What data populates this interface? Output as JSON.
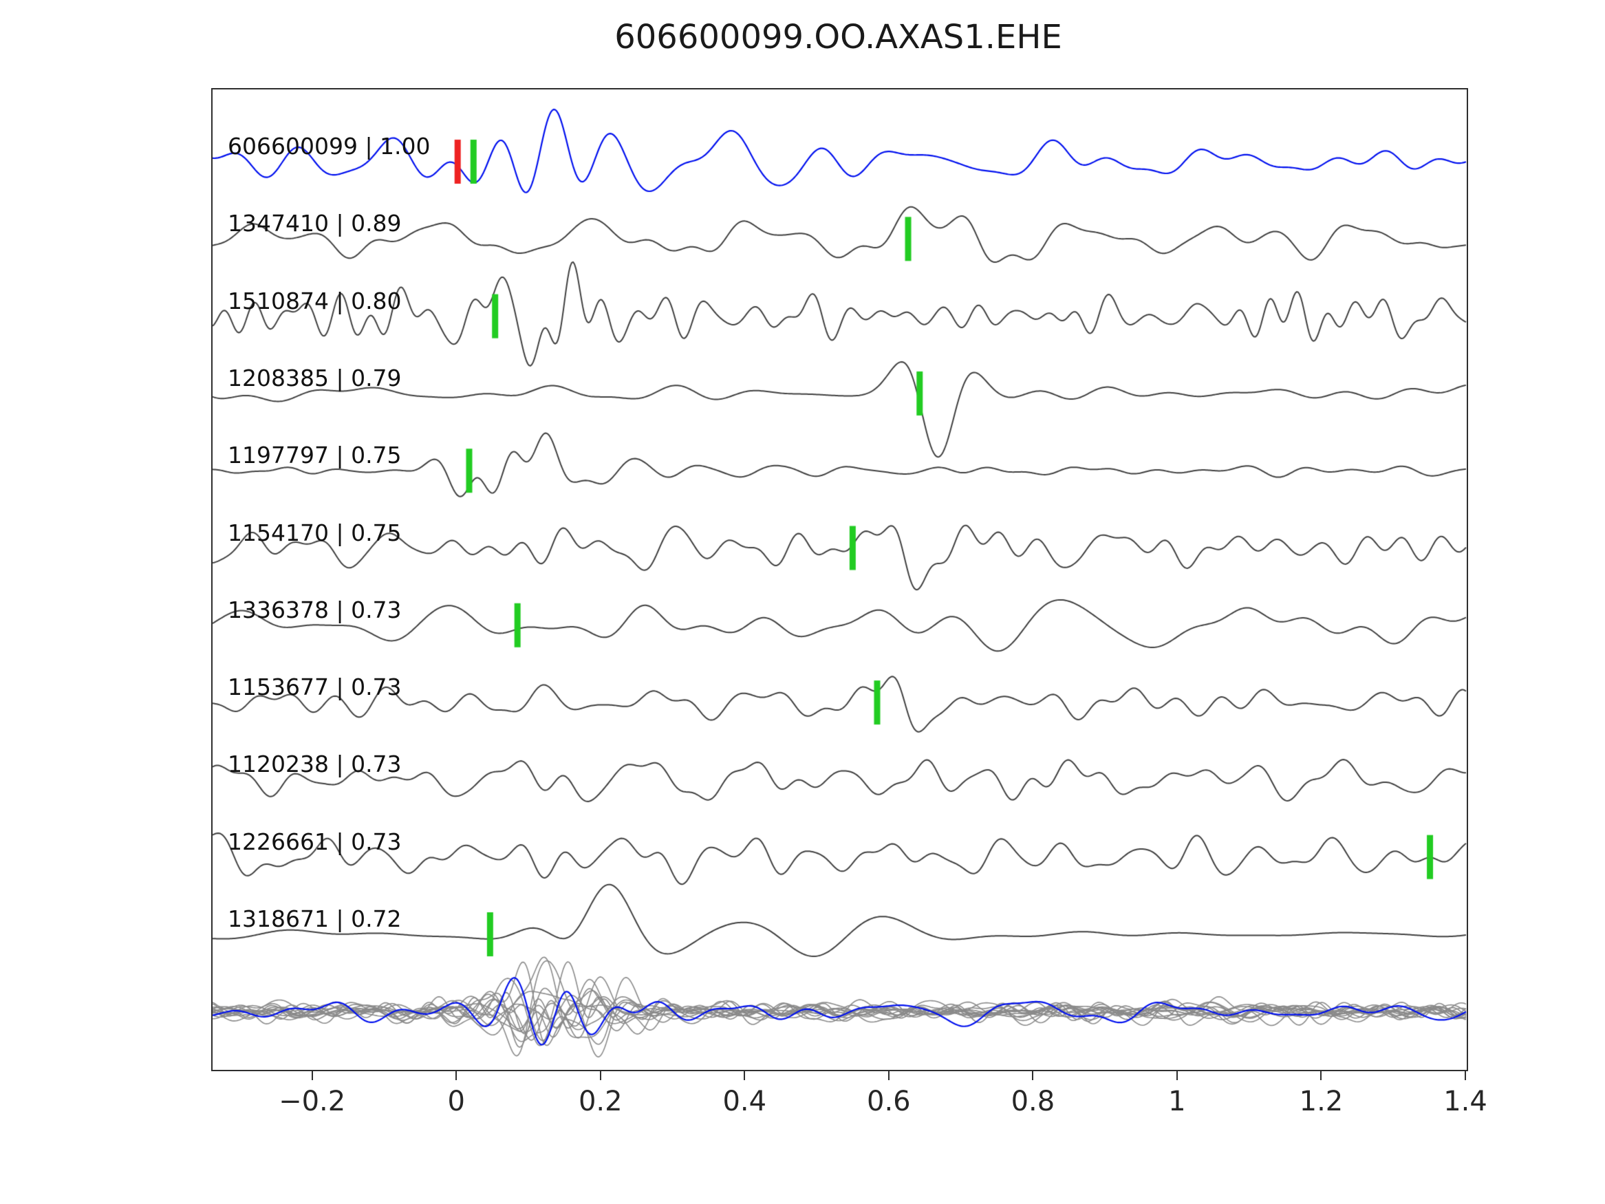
{
  "title": "606600099.OO.AXAS1.EHE",
  "chart_data": {
    "type": "line",
    "title": "606600099.OO.AXAS1.EHE",
    "xlabel": "",
    "ylabel": "",
    "xlim": [
      -0.34,
      1.4
    ],
    "grid": false,
    "legend": null,
    "x_ticks": [
      {
        "value": -0.2,
        "label": "−0.2"
      },
      {
        "value": 0,
        "label": "0"
      },
      {
        "value": 0.2,
        "label": "0.2"
      },
      {
        "value": 0.4,
        "label": "0.4"
      },
      {
        "value": 0.6,
        "label": "0.6"
      },
      {
        "value": 0.8,
        "label": "0.8"
      },
      {
        "value": 1,
        "label": "1"
      },
      {
        "value": 1.2,
        "label": "1.2"
      },
      {
        "value": 1.4,
        "label": "1.4"
      }
    ],
    "colors": {
      "template": "#0010ee",
      "detection": "#3f3f3f",
      "stack": "#8a8a8a",
      "pick": "#22cc22",
      "template_pick": "#ee2222",
      "axis": "#2e2e2e"
    },
    "traces": [
      {
        "id": "606600099",
        "cc": "1.00",
        "label": "606600099 | 1.00",
        "is_template": true,
        "picks": [
          {
            "t": 0.0,
            "kind": "template_pick"
          },
          {
            "t": 0.022,
            "kind": "pick"
          }
        ],
        "synth": {
          "seed": 11,
          "f_lo": 4,
          "f_hi": 16,
          "base": 0.5,
          "amp": 40,
          "bumps": [
            {
              "t": 0.12,
              "w": 0.1,
              "g": 1.6
            },
            {
              "t": 0.35,
              "w": 0.35,
              "g": 0.5
            }
          ]
        }
      },
      {
        "id": "1347410",
        "cc": "0.89",
        "label": "1347410 | 0.89",
        "is_template": false,
        "picks": [
          {
            "t": 0.625,
            "kind": "pick"
          }
        ],
        "synth": {
          "seed": 22,
          "f_lo": 4,
          "f_hi": 18,
          "base": 0.55,
          "amp": 38,
          "bumps": [
            {
              "t": 0.68,
              "w": 0.09,
              "g": 1.4
            }
          ]
        }
      },
      {
        "id": "1510874",
        "cc": "0.80",
        "label": "1510874 | 0.80",
        "is_template": false,
        "picks": [
          {
            "t": 0.052,
            "kind": "pick"
          }
        ],
        "synth": {
          "seed": 33,
          "f_lo": 7,
          "f_hi": 30,
          "base": 0.75,
          "amp": 36,
          "bumps": [
            {
              "t": 0.12,
              "w": 0.09,
              "g": 1.1
            }
          ]
        }
      },
      {
        "id": "1208385",
        "cc": "0.79",
        "label": "1208385 | 0.79",
        "is_template": false,
        "picks": [
          {
            "t": 0.641,
            "kind": "pick"
          }
        ],
        "synth": {
          "seed": 44,
          "f_lo": 3,
          "f_hi": 12,
          "base": 0.45,
          "amp": 36,
          "bumps": [
            {
              "t": 0.655,
              "w": 0.06,
              "g": 2.4
            }
          ]
        }
      },
      {
        "id": "1197797",
        "cc": "0.75",
        "label": "1197797 | 0.75",
        "is_template": false,
        "picks": [
          {
            "t": 0.016,
            "kind": "pick"
          }
        ],
        "synth": {
          "seed": 55,
          "f_lo": 5,
          "f_hi": 22,
          "base": 0.18,
          "amp": 40,
          "bumps": [
            {
              "t": 0.07,
              "w": 0.07,
              "g": 2.6
            },
            {
              "t": 0.2,
              "w": 0.15,
              "g": 0.5
            }
          ]
        }
      },
      {
        "id": "1154170",
        "cc": "0.75",
        "label": "1154170 | 0.75",
        "is_template": false,
        "picks": [
          {
            "t": 0.548,
            "kind": "pick"
          }
        ],
        "synth": {
          "seed": 66,
          "f_lo": 5,
          "f_hi": 22,
          "base": 0.65,
          "amp": 36,
          "bumps": [
            {
              "t": 0.62,
              "w": 0.12,
              "g": 0.8
            }
          ]
        }
      },
      {
        "id": "1336378",
        "cc": "0.73",
        "label": "1336378 | 0.73",
        "is_template": false,
        "picks": [
          {
            "t": 0.083,
            "kind": "pick"
          }
        ],
        "synth": {
          "seed": 77,
          "f_lo": 3.5,
          "f_hi": 14,
          "base": 0.6,
          "amp": 38,
          "bumps": [
            {
              "t": 1.1,
              "w": 0.25,
              "g": 0.7
            }
          ]
        }
      },
      {
        "id": "1153677",
        "cc": "0.73",
        "label": "1153677 | 0.73",
        "is_template": false,
        "picks": [
          {
            "t": 0.582,
            "kind": "pick"
          }
        ],
        "synth": {
          "seed": 88,
          "f_lo": 5,
          "f_hi": 22,
          "base": 0.6,
          "amp": 36,
          "bumps": [
            {
              "t": 0.07,
              "w": 0.05,
              "g": 1.3
            },
            {
              "t": 0.63,
              "w": 0.07,
              "g": 1.2
            }
          ]
        }
      },
      {
        "id": "1120238",
        "cc": "0.73",
        "label": "1120238 | 0.73",
        "is_template": false,
        "picks": [],
        "synth": {
          "seed": 99,
          "f_lo": 5,
          "f_hi": 22,
          "base": 0.65,
          "amp": 36,
          "bumps": [
            {
              "t": 1.08,
              "w": 0.04,
              "g": 1.2
            }
          ]
        }
      },
      {
        "id": "1226661",
        "cc": "0.73",
        "label": "1226661 | 0.73",
        "is_template": false,
        "picks": [
          {
            "t": 1.349,
            "kind": "pick"
          }
        ],
        "synth": {
          "seed": 111,
          "f_lo": 5,
          "f_hi": 22,
          "base": 0.65,
          "amp": 36,
          "bumps": [
            {
              "t": 1.37,
              "w": 0.05,
              "g": 1.3
            }
          ]
        }
      },
      {
        "id": "1318671",
        "cc": "0.72",
        "label": "1318671 | 0.72",
        "is_template": false,
        "picks": [
          {
            "t": 0.045,
            "kind": "pick"
          }
        ],
        "synth": {
          "seed": 122,
          "f_lo": 2.5,
          "f_hi": 9,
          "base": 0.15,
          "amp": 36,
          "bumps": [
            {
              "t": 0.17,
              "w": 0.09,
              "g": 3.0
            },
            {
              "t": 0.4,
              "w": 0.25,
              "g": 0.9
            }
          ]
        }
      }
    ],
    "stack": {
      "count": 14,
      "synth": {
        "seed": 500,
        "f_lo": 5,
        "f_hi": 24,
        "base": 0.45,
        "amp": 24,
        "bumps": [
          {
            "t": 0.13,
            "w": 0.09,
            "g": 2.2
          }
        ]
      },
      "template_synth": {
        "seed": 61,
        "f_lo": 4,
        "f_hi": 18,
        "base": 0.5,
        "amp": 26,
        "bumps": [
          {
            "t": 0.13,
            "w": 0.1,
            "g": 2.0
          }
        ]
      }
    }
  }
}
